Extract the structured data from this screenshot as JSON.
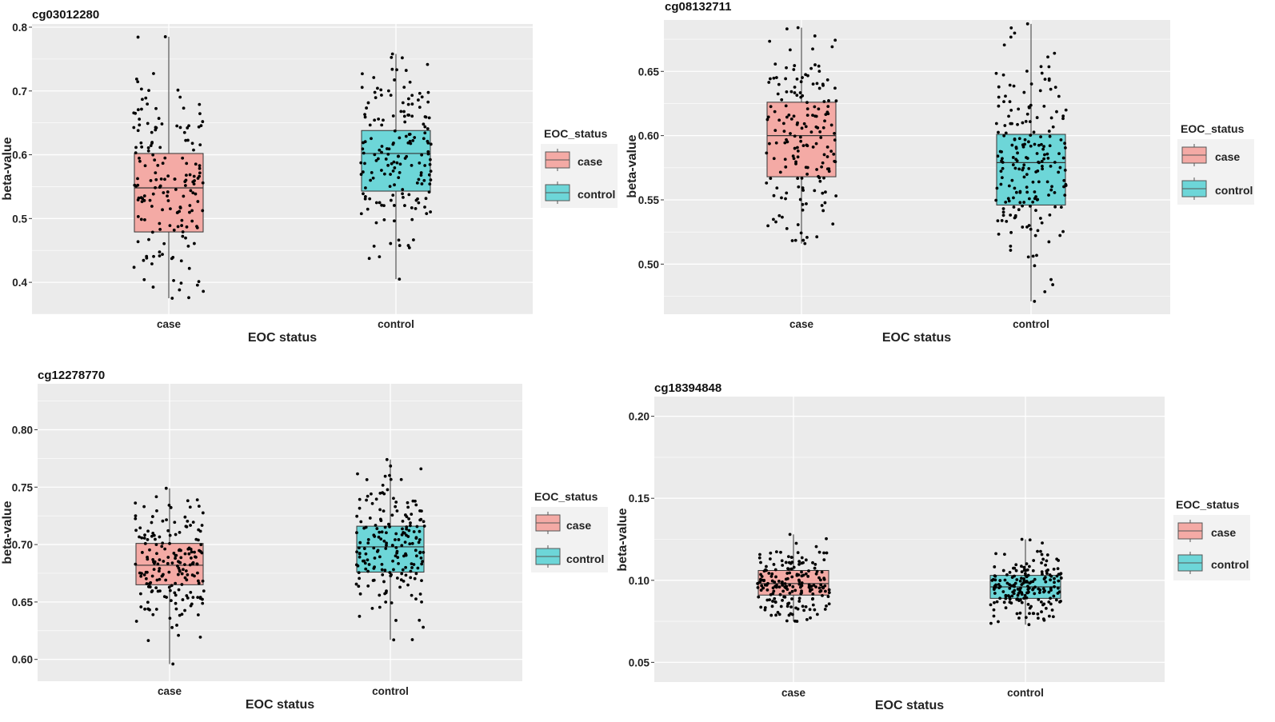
{
  "chart_data": [
    {
      "type": "box",
      "title": "cg03012280",
      "xlabel": "EOC status",
      "ylabel": "beta-value",
      "categories": [
        "case",
        "control"
      ],
      "yticks": [
        "0.4",
        "0.5",
        "0.6",
        "0.7",
        "0.8"
      ],
      "ylim": [
        0.35,
        0.805
      ],
      "boxes": [
        {
          "group": "case",
          "q1": 0.479,
          "median": 0.548,
          "q3": 0.602,
          "whisker_low": 0.375,
          "whisker_high": 0.785,
          "n_points": 170
        },
        {
          "group": "control",
          "q1": 0.543,
          "median": 0.602,
          "q3": 0.638,
          "whisker_low": 0.405,
          "whisker_high": 0.758,
          "n_points": 170
        }
      ],
      "legend": {
        "title": "EOC_status",
        "entries": [
          "case",
          "control"
        ]
      }
    },
    {
      "type": "box",
      "title": "cg08132711",
      "xlabel": "EOC status",
      "ylabel": "beta-value",
      "categories": [
        "case",
        "control"
      ],
      "yticks": [
        "0.50",
        "0.55",
        "0.60",
        "0.65"
      ],
      "ylim": [
        0.461,
        0.69
      ],
      "boxes": [
        {
          "group": "case",
          "q1": 0.568,
          "median": 0.6,
          "q3": 0.626,
          "whisker_low": 0.516,
          "whisker_high": 0.684,
          "n_points": 170
        },
        {
          "group": "control",
          "q1": 0.546,
          "median": 0.579,
          "q3": 0.601,
          "whisker_low": 0.471,
          "whisker_high": 0.687,
          "n_points": 200
        }
      ],
      "legend": {
        "title": "EOC_status",
        "entries": [
          "case",
          "control"
        ]
      }
    },
    {
      "type": "box",
      "title": "cg12278770",
      "xlabel": "EOC status",
      "ylabel": "beta-value",
      "categories": [
        "case",
        "control"
      ],
      "yticks": [
        "0.60",
        "0.65",
        "0.70",
        "0.75",
        "0.80"
      ],
      "ylim": [
        0.581,
        0.84
      ],
      "boxes": [
        {
          "group": "case",
          "q1": 0.665,
          "median": 0.682,
          "q3": 0.701,
          "whisker_low": 0.596,
          "whisker_high": 0.749,
          "n_points": 190
        },
        {
          "group": "control",
          "q1": 0.676,
          "median": 0.698,
          "q3": 0.716,
          "whisker_low": 0.617,
          "whisker_high": 0.774,
          "n_points": 190
        }
      ],
      "legend": {
        "title": "EOC_status",
        "entries": [
          "case",
          "control"
        ]
      }
    },
    {
      "type": "box",
      "title": "cg18394848",
      "xlabel": "EOC status",
      "ylabel": "beta-value",
      "categories": [
        "case",
        "control"
      ],
      "yticks": [
        "0.05",
        "0.10",
        "0.15",
        "0.20"
      ],
      "ylim": [
        0.038,
        0.212
      ],
      "boxes": [
        {
          "group": "case",
          "q1": 0.091,
          "median": 0.098,
          "q3": 0.106,
          "whisker_low": 0.075,
          "whisker_high": 0.128,
          "n_points": 190
        },
        {
          "group": "control",
          "q1": 0.089,
          "median": 0.096,
          "q3": 0.103,
          "whisker_low": 0.073,
          "whisker_high": 0.125,
          "n_points": 190
        }
      ],
      "legend": {
        "title": "EOC_status",
        "entries": [
          "case",
          "control"
        ]
      }
    }
  ],
  "colors": {
    "panel_bg": "#ebebeb",
    "grid": "#ffffff",
    "case_fill": "#f4aaa5",
    "control_fill": "#6dd6d8",
    "box_line": "#333333",
    "point": "#000000"
  }
}
